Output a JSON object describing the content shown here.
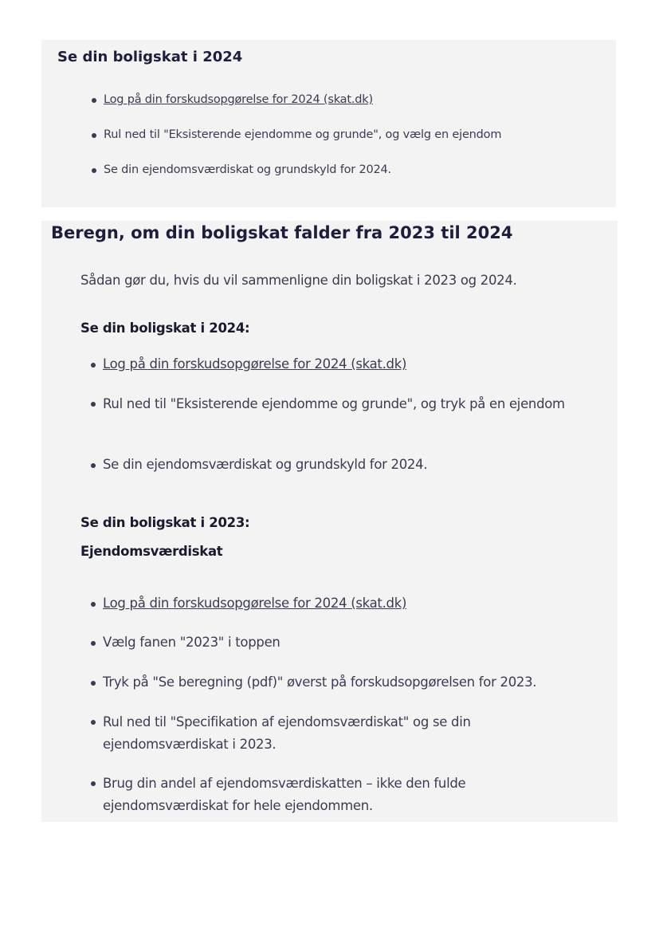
{
  "section1": {
    "title": "Se din boligskat i 2024",
    "items": [
      "Log på din forskudsopgørelse for 2024 (skat.dk)",
      "Rul ned til \"Eksisterende ejendomme og grunde\", og vælg en ejendom",
      "Se din ejendomsværdiskat og grundskyld for 2024."
    ]
  },
  "section2": {
    "title": "Beregn, om din boligskat falder fra 2023 til 2024",
    "intro": "Sådan gør du, hvis du vil sammenligne din boligskat i 2023 og 2024.",
    "sub2024": "Se din boligskat i 2024:",
    "items2024": [
      "Log på din forskudsopgørelse for 2024 (skat.dk)",
      "Rul ned til \"Eksisterende ejendomme og grunde\", og tryk på en ejendom",
      "Se din ejendomsværdiskat og grundskyld for 2024."
    ],
    "sub2023": "Se din boligskat i 2023:",
    "sub_ejendom": "Ejendomsværdiskat",
    "items2023": [
      "Log på din forskudsopgørelse for 2024 (skat.dk)",
      "Vælg fanen \"2023\" i toppen",
      "Tryk på \"Se beregning (pdf)\" øverst på forskudsopgørelsen for 2023.",
      "Rul ned til \"Specifikation af ejendomsværdiskat\" og se din ejendomsværdiskat i 2023.",
      "Brug din andel af ejendomsværdiskatten – ikke den fulde ejendomsværdiskat for hele ejendommen."
    ]
  }
}
